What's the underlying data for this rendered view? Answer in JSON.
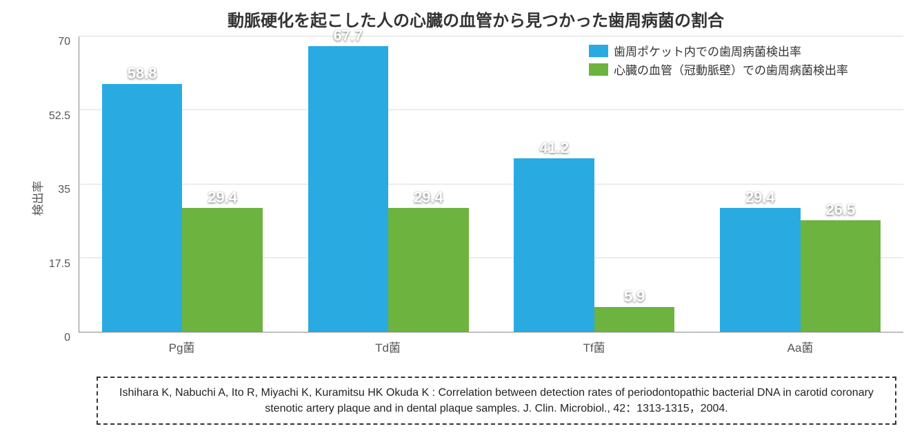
{
  "chart": {
    "type": "bar",
    "title": "動脈硬化を起こした人の心臓の血管から見つかった歯周病菌の割合",
    "title_fontsize": 24,
    "title_color": "#333333",
    "ylabel": "検出率",
    "ylabel_fontsize": 17,
    "ylim": [
      0,
      70
    ],
    "ytick_step": 17.5,
    "yticks": [
      0,
      17.5,
      35,
      52.5,
      70
    ],
    "categories": [
      "Pg菌",
      "Td菌",
      "Tf菌",
      "Aa菌"
    ],
    "series": [
      {
        "name": "歯周ポケット内での歯周病菌検出率",
        "color": "#29abe2",
        "values": [
          58.8,
          67.7,
          41.2,
          29.4
        ]
      },
      {
        "name": "心臓の血管（冠動脈壁）での歯周病菌検出率",
        "color": "#6cb33f",
        "values": [
          29.4,
          29.4,
          5.9,
          26.5
        ]
      }
    ],
    "xlabel_fontsize": 17,
    "value_label_fontsize": 22,
    "value_label_color": "#ffffff",
    "background_color": "#ffffff",
    "grid_color": "#dddddd",
    "axis_color": "#888888",
    "tick_label_color": "#555555",
    "bar_width_ratio": 0.38,
    "group_gap_ratio": 0.22,
    "legend": {
      "position": "top-right",
      "fontsize": 17,
      "swatch_w": 28,
      "swatch_h": 18
    }
  },
  "citation": {
    "text": "Ishihara K, Nabuchi A, Ito R, Miyachi K, Kuramitsu HK Okuda K : Correlation between detection rates of periodontopathic bacterial DNA in carotid coronary stenotic artery plaque and in dental plaque samples. J. Clin. Microbiol., 42：1313-1315，2004.",
    "fontsize": 16,
    "border_style": "dashed",
    "border_color": "#333333",
    "text_color": "#222222"
  }
}
